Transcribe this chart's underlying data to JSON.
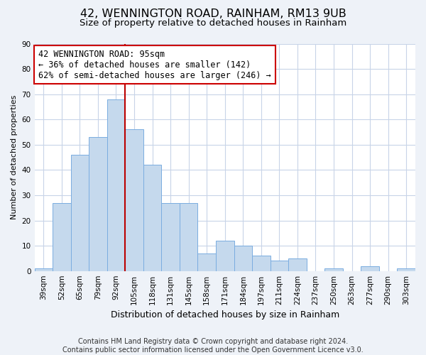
{
  "title": "42, WENNINGTON ROAD, RAINHAM, RM13 9UB",
  "subtitle": "Size of property relative to detached houses in Rainham",
  "xlabel": "Distribution of detached houses by size in Rainham",
  "ylabel": "Number of detached properties",
  "categories": [
    "39sqm",
    "52sqm",
    "65sqm",
    "79sqm",
    "92sqm",
    "105sqm",
    "118sqm",
    "131sqm",
    "145sqm",
    "158sqm",
    "171sqm",
    "184sqm",
    "197sqm",
    "211sqm",
    "224sqm",
    "237sqm",
    "250sqm",
    "263sqm",
    "277sqm",
    "290sqm",
    "303sqm"
  ],
  "values": [
    1,
    27,
    46,
    53,
    68,
    56,
    42,
    27,
    27,
    7,
    12,
    10,
    6,
    4,
    5,
    0,
    1,
    0,
    2,
    0,
    1
  ],
  "bar_color": "#c5d9ed",
  "bar_edge_color": "#7aade0",
  "vline_x_idx": 4,
  "vline_color": "#bb0000",
  "ylim": [
    0,
    90
  ],
  "yticks": [
    0,
    10,
    20,
    30,
    40,
    50,
    60,
    70,
    80,
    90
  ],
  "annotation_line1": "42 WENNINGTON ROAD: 95sqm",
  "annotation_line2": "← 36% of detached houses are smaller (142)",
  "annotation_line3": "62% of semi-detached houses are larger (246) →",
  "footer_line1": "Contains HM Land Registry data © Crown copyright and database right 2024.",
  "footer_line2": "Contains public sector information licensed under the Open Government Licence v3.0.",
  "background_color": "#eef2f8",
  "plot_bg_color": "#ffffff",
  "grid_color": "#c8d4e8",
  "title_fontsize": 11.5,
  "subtitle_fontsize": 9.5,
  "xlabel_fontsize": 9,
  "ylabel_fontsize": 8,
  "tick_fontsize": 7.5,
  "annotation_fontsize": 8.5,
  "footer_fontsize": 7
}
